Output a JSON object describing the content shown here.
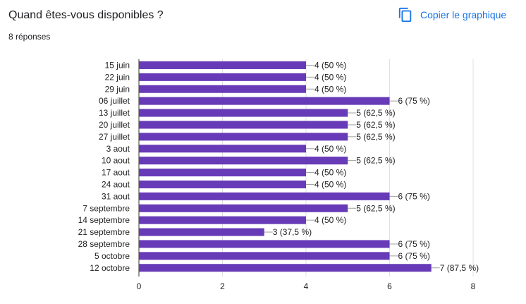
{
  "question": {
    "title": "Quand êtes-vous disponibles ?",
    "responses": "8 réponses"
  },
  "toolbar": {
    "copy_label": "Copier le graphique"
  },
  "colors": {
    "bar": "#673ab7",
    "grid": "#e0e0e0",
    "accent": "#1a73e8"
  },
  "chart_data": {
    "type": "bar",
    "orientation": "horizontal",
    "categories": [
      "15 juin",
      "22 juin",
      "29 juin",
      "06 juillet",
      "13 juillet",
      "20 juillet",
      "27 juillet",
      "3 aout",
      "10 aout",
      "17 aout",
      "24 aout",
      "31 aout",
      "7 septembre",
      "14 septembre",
      "21 septembre",
      "28 septembre",
      "5 octobre",
      "12 octobre"
    ],
    "values": [
      4,
      4,
      4,
      6,
      5,
      5,
      5,
      4,
      5,
      4,
      4,
      6,
      5,
      4,
      3,
      6,
      6,
      7
    ],
    "data_labels": [
      "4 (50 %)",
      "4 (50 %)",
      "4 (50 %)",
      "6 (75 %)",
      "5 (62,5 %)",
      "5 (62,5 %)",
      "5 (62,5 %)",
      "4 (50 %)",
      "5 (62,5 %)",
      "4 (50 %)",
      "4 (50 %)",
      "6 (75 %)",
      "5 (62,5 %)",
      "4 (50 %)",
      "3 (37,5 %)",
      "6 (75 %)",
      "6 (75 %)",
      "7 (87,5 %)"
    ],
    "xlim": [
      0,
      8
    ],
    "xticks": [
      0,
      2,
      4,
      6,
      8
    ],
    "xtick_labels": [
      "0",
      "2",
      "4",
      "6",
      "8"
    ],
    "grid": true,
    "legend": "none"
  }
}
